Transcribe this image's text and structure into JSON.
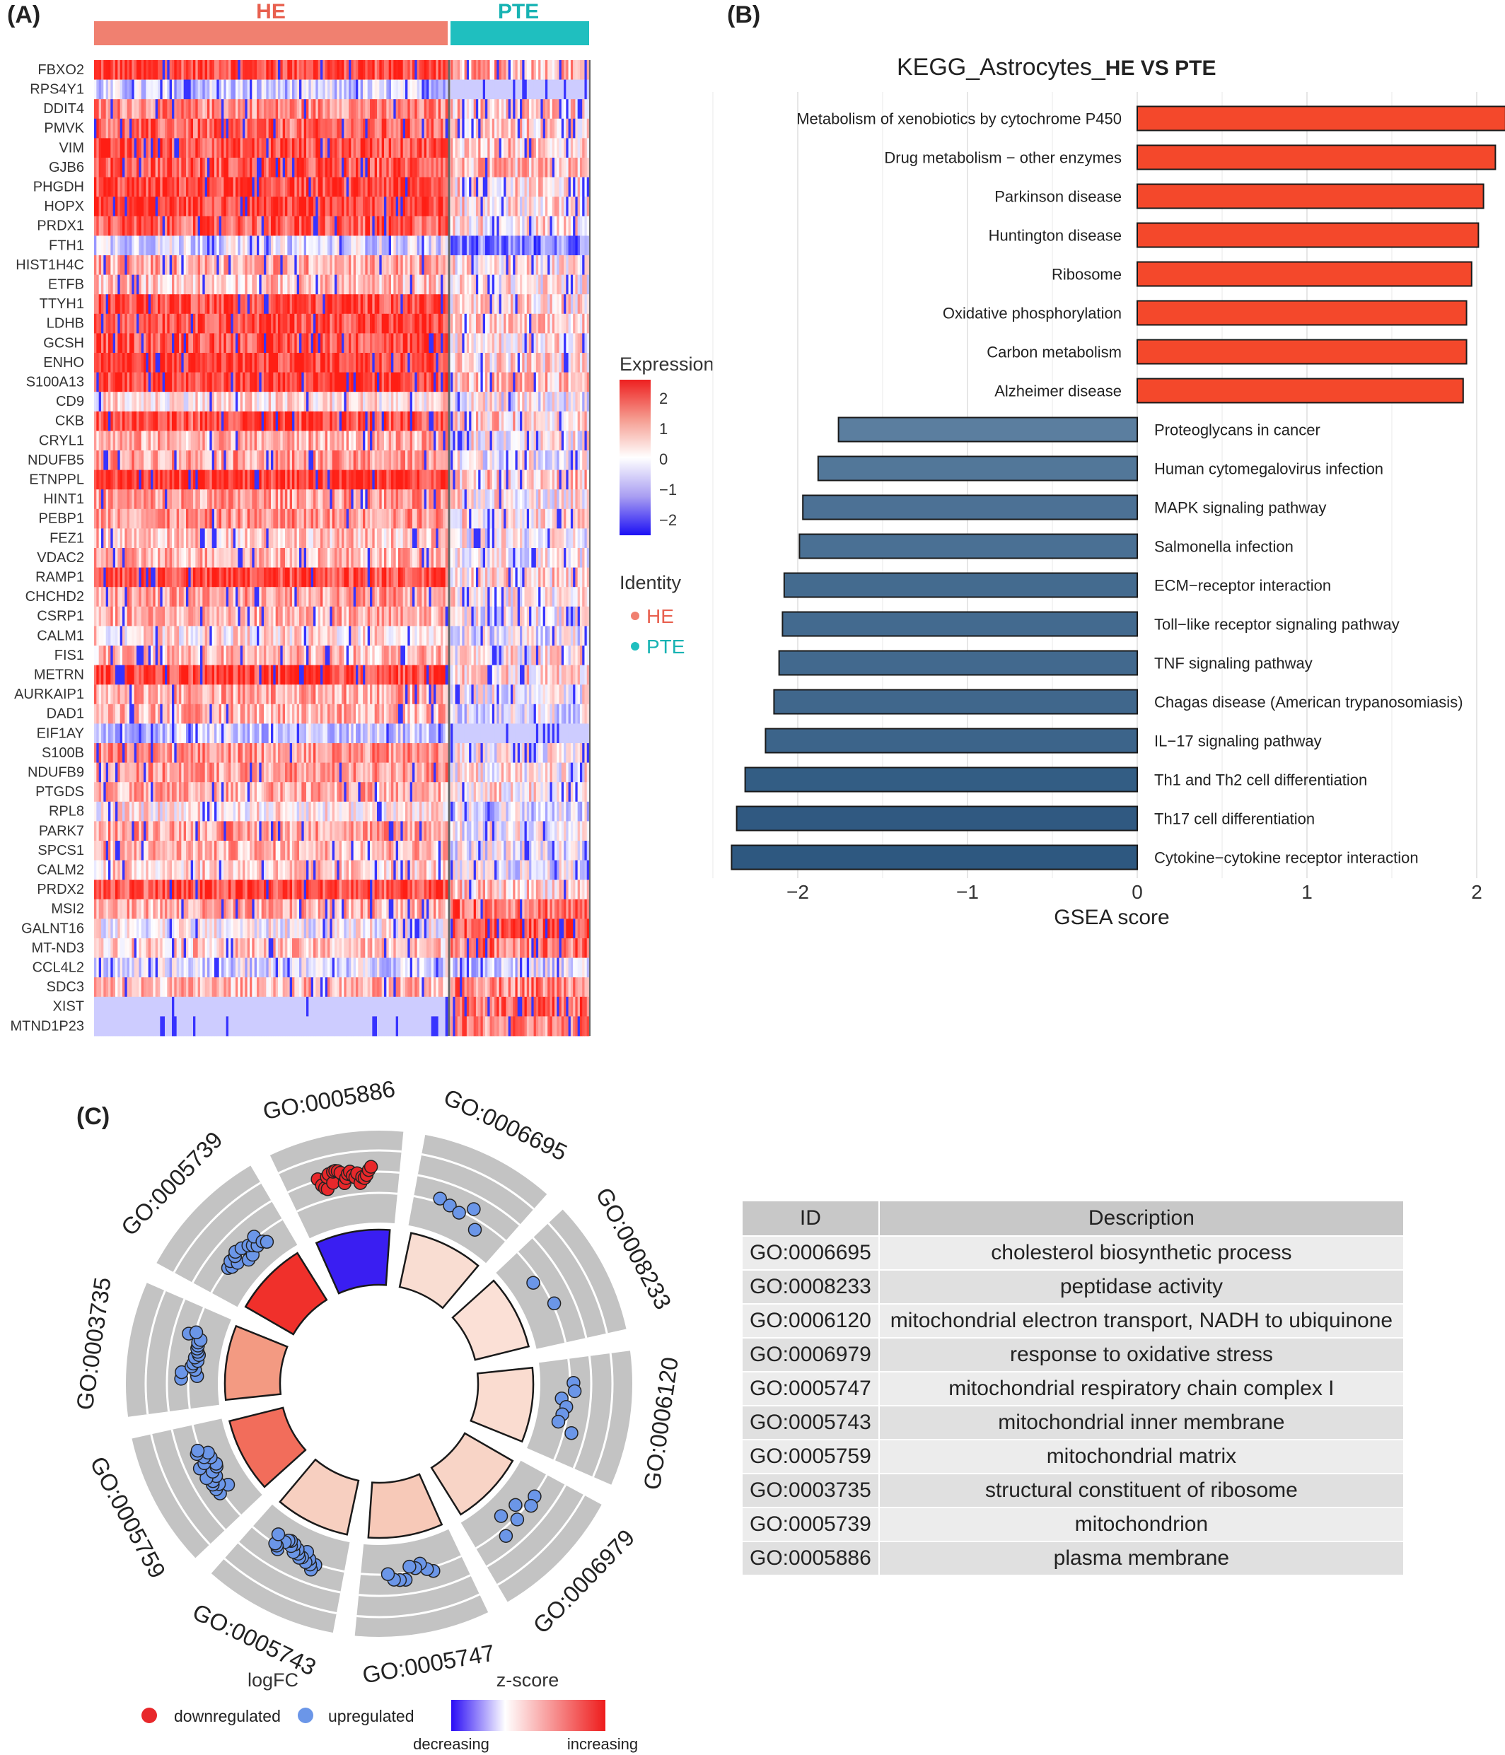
{
  "panels": {
    "a": "(A)",
    "b": "(B)",
    "c": "(C)"
  },
  "heatmap": {
    "groups": [
      {
        "name": "HE",
        "color": "#f08070"
      },
      {
        "name": "PTE",
        "color": "#1fbfbf"
      }
    ],
    "genes": [
      "FBXO2",
      "RPS4Y1",
      "DDIT4",
      "PMVK",
      "VIM",
      "GJB6",
      "PHGDH",
      "HOPX",
      "PRDX1",
      "FTH1",
      "HIST1H4C",
      "ETFB",
      "TTYH1",
      "LDHB",
      "GCSH",
      "ENHO",
      "S100A13",
      "CD9",
      "CKB",
      "CRYL1",
      "NDUFB5",
      "ETNPPL",
      "HINT1",
      "PEBP1",
      "FEZ1",
      "VDAC2",
      "RAMP1",
      "CHCHD2",
      "CSRP1",
      "CALM1",
      "FIS1",
      "METRN",
      "AURKAIP1",
      "DAD1",
      "EIF1AY",
      "S100B",
      "NDUFB9",
      "PTGDS",
      "RPL8",
      "PARK7",
      "SPCS1",
      "CALM2",
      "PRDX2",
      "MSI2",
      "GALNT16",
      "MT-ND3",
      "CCL4L2",
      "SDC3",
      "XIST",
      "MTND1P23"
    ],
    "legend_title": "Expression",
    "legend_ticks": [
      "2",
      "1",
      "0",
      "−1",
      "−2"
    ],
    "identity_title": "Identity",
    "identity_items": [
      "HE",
      "PTE"
    ]
  },
  "chart_data": [
    {
      "type": "bar",
      "title_prefix": "KEGG_Astrocytes_",
      "title_suffix": "HE VS PTE",
      "xlabel": "GSEA score",
      "xlim": [
        -2.45,
        2.15
      ],
      "x_ticks": [
        "−2",
        "−1",
        "0",
        "1",
        "2"
      ],
      "x_tick_values": [
        -2,
        -1,
        0,
        1,
        2
      ],
      "categories": [
        "Metabolism of xenobiotics by cytochrome P450",
        "Drug metabolism − other enzymes",
        "Parkinson disease",
        "Huntington disease",
        "Ribosome",
        "Oxidative phosphorylation",
        "Carbon metabolism",
        "Alzheimer disease",
        "Proteoglycans in cancer",
        "Human cytomegalovirus infection",
        "MAPK signaling pathway",
        "Salmonella infection",
        "ECM−receptor interaction",
        "Toll−like receptor signaling pathway",
        "TNF signaling pathway",
        "Chagas disease (American trypanosomiasis)",
        "IL−17 signaling pathway",
        "Th1 and Th2 cell differentiation",
        "Th17 cell differentiation",
        "Cytokine−cytokine receptor interaction"
      ],
      "values": [
        2.17,
        2.11,
        2.04,
        2.01,
        1.97,
        1.94,
        1.94,
        1.92,
        -1.76,
        -1.88,
        -1.97,
        -1.99,
        -2.08,
        -2.09,
        -2.11,
        -2.14,
        -2.19,
        -2.31,
        -2.36,
        -2.39
      ],
      "colors": {
        "positive": "#f4482b",
        "negative_light": "#5f82a2",
        "negative_dark": "#2d577f"
      }
    },
    {
      "type": "circle",
      "sectors": [
        "GO:0006695",
        "GO:0008233",
        "GO:0006120",
        "GO:0006979",
        "GO:0005747",
        "GO:0005743",
        "GO:0005759",
        "GO:0003735",
        "GO:0005739",
        "GO:0005886"
      ],
      "zscore_colors": [
        "#f9ddd2",
        "#fbe0d6",
        "#fadcd0",
        "#f8d4c6",
        "#f7c9b8",
        "#f7cfc0",
        "#f26d5b",
        "#f39a82",
        "#f0302b",
        "#3a1ef2"
      ],
      "point_counts": [
        5,
        2,
        7,
        6,
        9,
        20,
        18,
        16,
        15,
        24
      ],
      "legend": {
        "logfc_title": "logFC",
        "down_label": "downregulated",
        "up_label": "upregulated",
        "z_title": "z-score",
        "decreasing": "decreasing",
        "increasing": "increasing",
        "down_color": "#e8282b",
        "up_color": "#6b96e8"
      }
    }
  ],
  "go_table": {
    "headers": [
      "ID",
      "Description"
    ],
    "rows": [
      [
        "GO:0006695",
        "cholesterol biosynthetic process"
      ],
      [
        "GO:0008233",
        "peptidase activity"
      ],
      [
        "GO:0006120",
        "mitochondrial electron transport, NADH to ubiquinone"
      ],
      [
        "GO:0006979",
        "response to oxidative stress"
      ],
      [
        "GO:0005747",
        "mitochondrial respiratory chain complex I"
      ],
      [
        "GO:0005743",
        "mitochondrial inner membrane"
      ],
      [
        "GO:0005759",
        "mitochondrial matrix"
      ],
      [
        "GO:0003735",
        "structural constituent of ribosome"
      ],
      [
        "GO:0005739",
        "mitochondrion"
      ],
      [
        "GO:0005886",
        "plasma membrane"
      ]
    ]
  }
}
